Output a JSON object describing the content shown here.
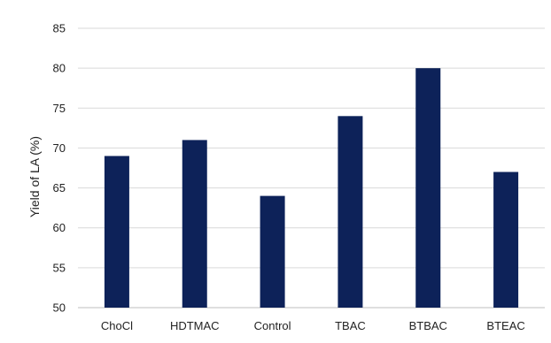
{
  "chart_data": {
    "type": "bar",
    "title": "",
    "xlabel": "",
    "ylabel": "Yield of LA (%)",
    "categories": [
      "ChoCl",
      "HDTMAC",
      "Control",
      "TBAC",
      "BTBAC",
      "BTEAC"
    ],
    "values": [
      69,
      71,
      64,
      74,
      80,
      67
    ],
    "ylim": [
      50,
      85
    ],
    "yticks": [
      50,
      55,
      60,
      65,
      70,
      75,
      80,
      85
    ],
    "grid": true,
    "legend": "none",
    "bar_color": "#0d2259"
  }
}
